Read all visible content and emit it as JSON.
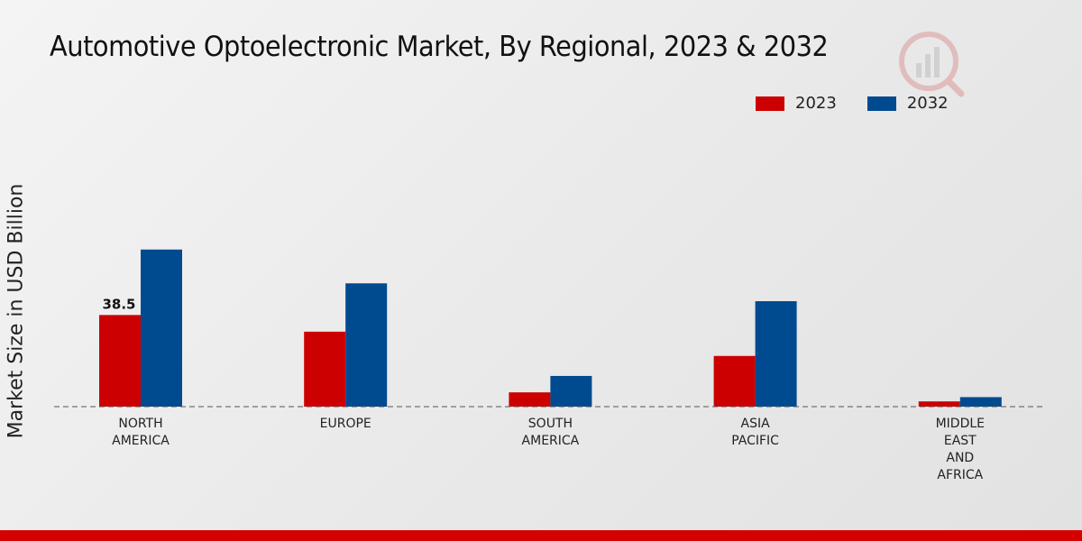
{
  "chart_data": {
    "type": "bar",
    "title": "Automotive Optoelectronic Market, By Regional, 2023 & 2032",
    "xlabel": "",
    "ylabel": "Market Size in USD Billion",
    "categories": [
      [
        "NORTH",
        "AMERICA"
      ],
      [
        "EUROPE"
      ],
      [
        "SOUTH",
        "AMERICA"
      ],
      [
        "ASIA",
        "PACIFIC"
      ],
      [
        "MIDDLE",
        "EAST",
        "AND",
        "AFRICA"
      ]
    ],
    "series": [
      {
        "name": "2023",
        "color": "#cc0000",
        "values": [
          38.5,
          31.5,
          6.0,
          21.3,
          2.2
        ]
      },
      {
        "name": "2032",
        "color": "#004a8f",
        "values": [
          66.0,
          51.8,
          12.9,
          44.3,
          4.0
        ]
      }
    ],
    "data_labels": [
      {
        "series": 0,
        "index": 0,
        "text": "38.5"
      }
    ],
    "ylim": [
      0,
      100
    ],
    "grid": false,
    "legend_position": "top-right"
  }
}
